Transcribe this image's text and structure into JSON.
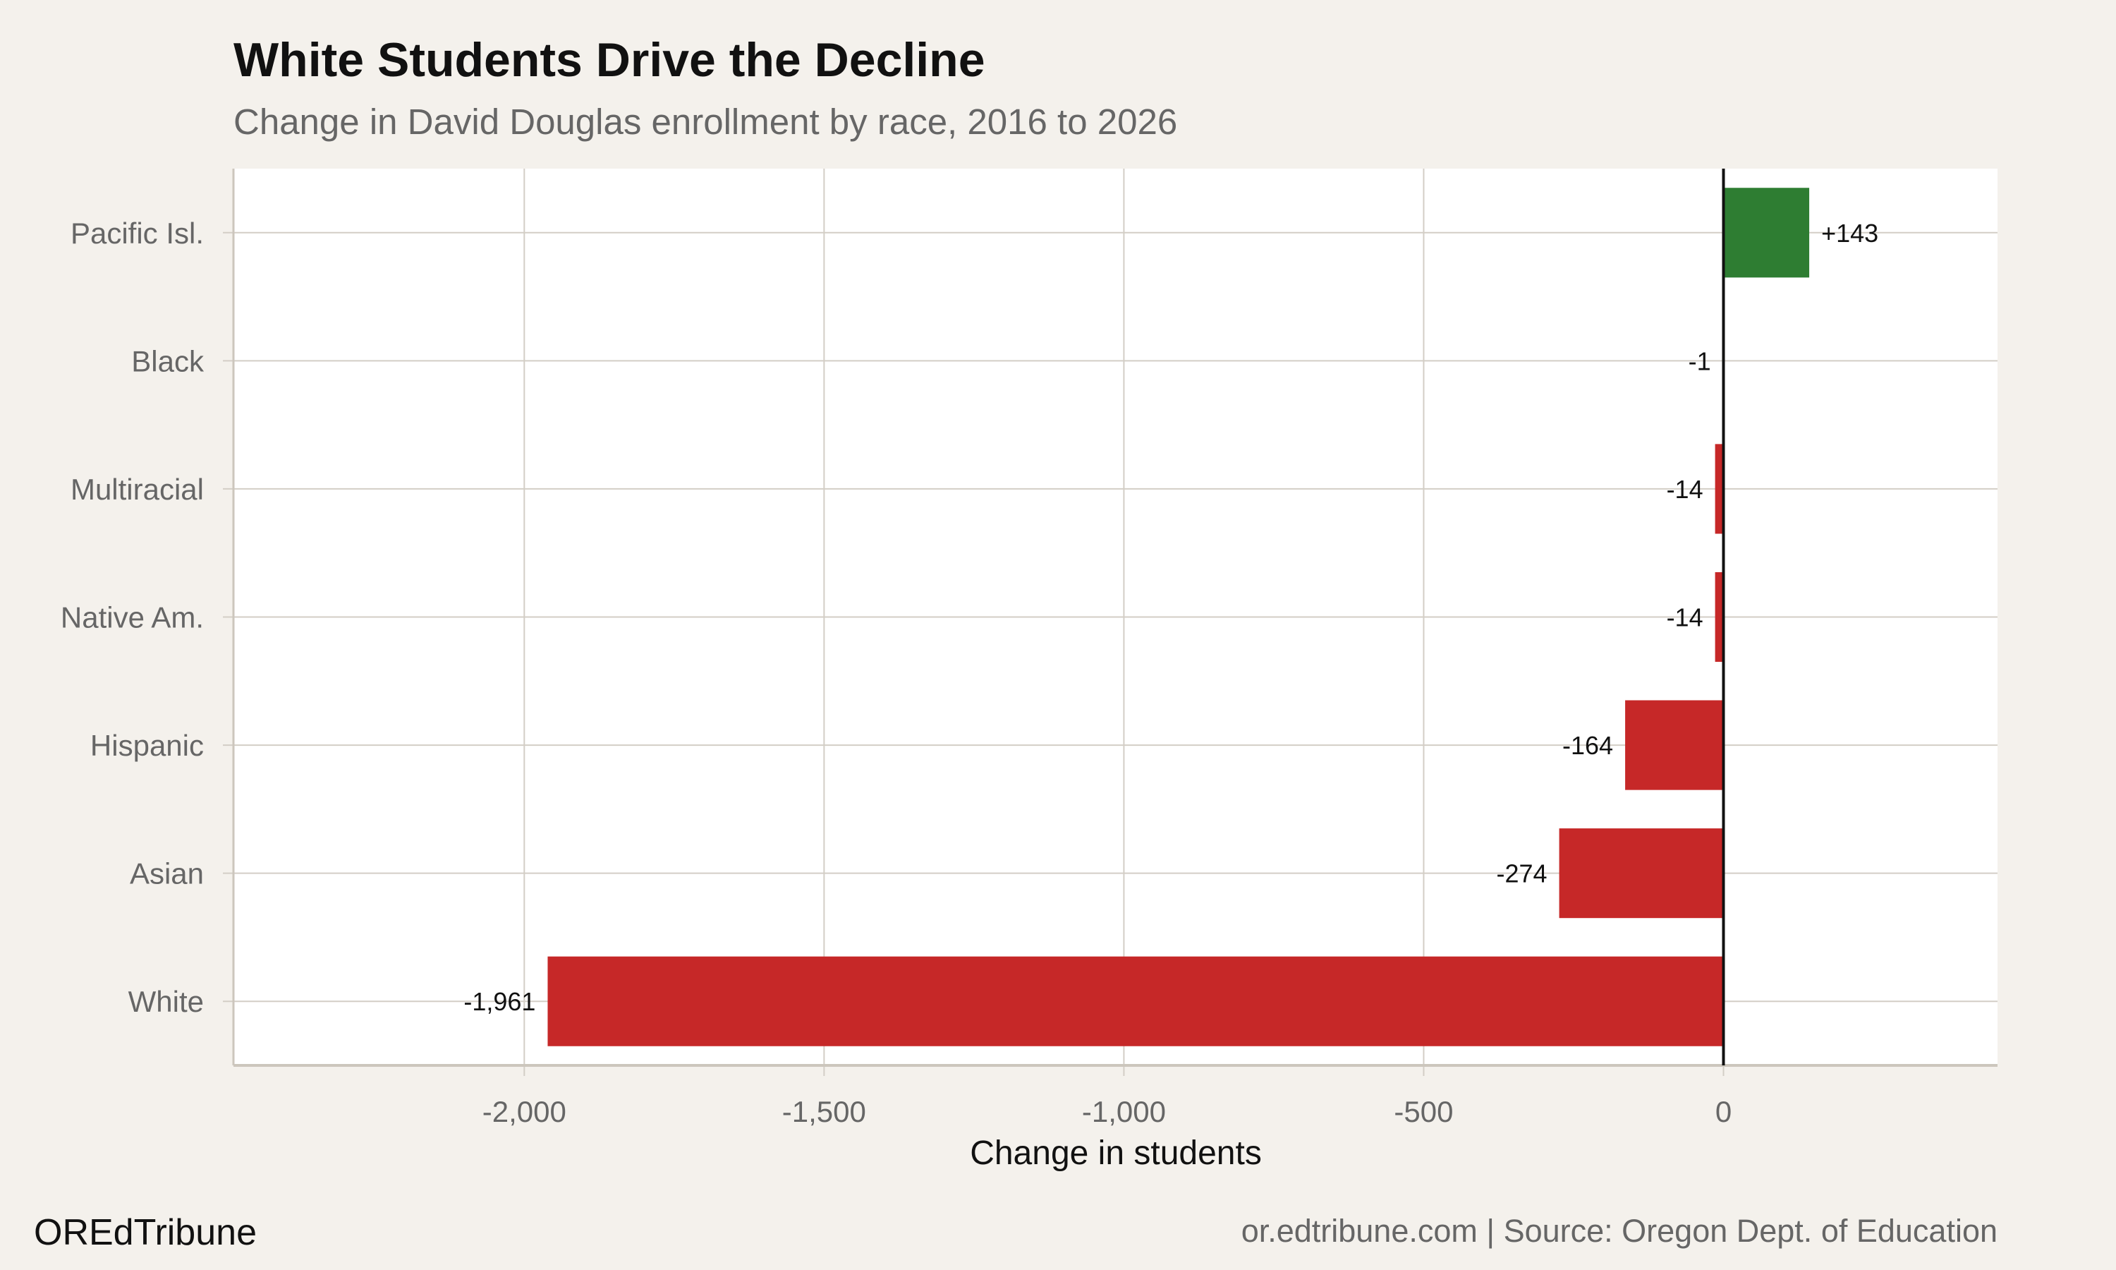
{
  "chart_data": {
    "type": "bar",
    "orientation": "horizontal",
    "title": "White Students Drive the Decline",
    "subtitle": "Change in David Douglas enrollment by race, 2016 to 2026",
    "xlabel": "Change in students",
    "ylabel": "",
    "categories": [
      "Pacific Isl.",
      "Black",
      "Multiracial",
      "Native Am.",
      "Hispanic",
      "Asian",
      "White"
    ],
    "values": [
      143,
      -1,
      -14,
      -14,
      -164,
      -274,
      -1961
    ],
    "data_labels": [
      "+143",
      "-1",
      "-14",
      "-14",
      "-164",
      "-274",
      "-1,961"
    ],
    "xlim": [
      -2485,
      457
    ],
    "x_ticks": [
      -2000,
      -1500,
      -1000,
      -500,
      0
    ],
    "x_tick_labels": [
      "-2,000",
      "-1,500",
      "-1,000",
      "-500",
      "0"
    ],
    "grid": true,
    "legend": "none",
    "colors": {
      "positive": "#2e7d32",
      "negative": "#c62828",
      "background": "#f4f1ec",
      "panel": "#ffffff",
      "grid": "#d3cec6",
      "zero_line": "#111111"
    }
  },
  "footer": {
    "brand": "OREdTribune",
    "source": "or.edtribune.com | Source: Oregon Dept. of Education"
  }
}
